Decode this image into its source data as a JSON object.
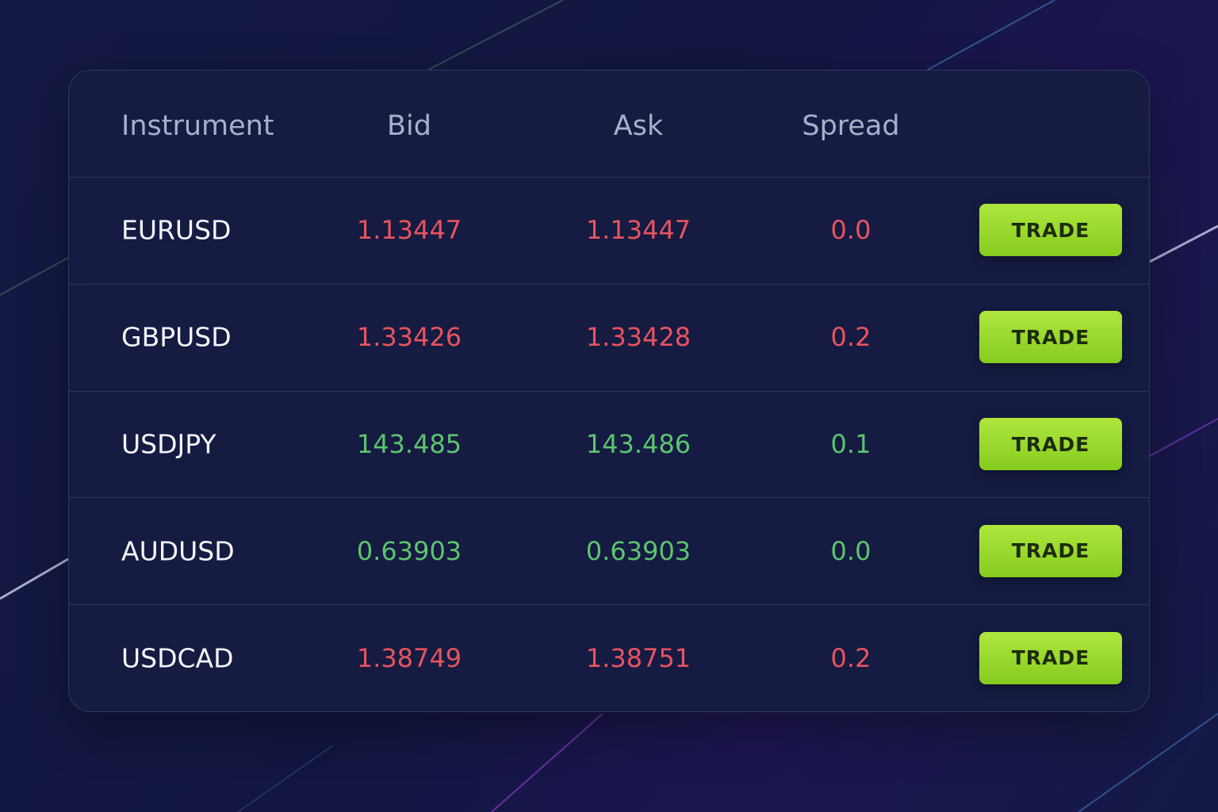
{
  "table": {
    "headers": [
      "Instrument",
      "Bid",
      "Ask",
      "Spread"
    ],
    "rows": [
      {
        "instrument": "EURUSD",
        "bid": "1.13447",
        "ask": "1.13447",
        "spread": "0.0",
        "color": "#e8535f",
        "action": "TRADE"
      },
      {
        "instrument": "GBPUSD",
        "bid": "1.33426",
        "ask": "1.33428",
        "spread": "0.2",
        "color": "#e8535f",
        "action": "TRADE"
      },
      {
        "instrument": "USDJPY",
        "bid": "143.485",
        "ask": "143.486",
        "spread": "0.1",
        "color": "#5cc46f",
        "action": "TRADE"
      },
      {
        "instrument": "AUDUSD",
        "bid": "0.63903",
        "ask": "0.63903",
        "spread": "0.0",
        "color": "#5cc46f",
        "action": "TRADE"
      },
      {
        "instrument": "USDCAD",
        "bid": "1.38749",
        "ask": "1.38751",
        "spread": "0.2",
        "color": "#e8535f",
        "action": "TRADE"
      }
    ]
  }
}
